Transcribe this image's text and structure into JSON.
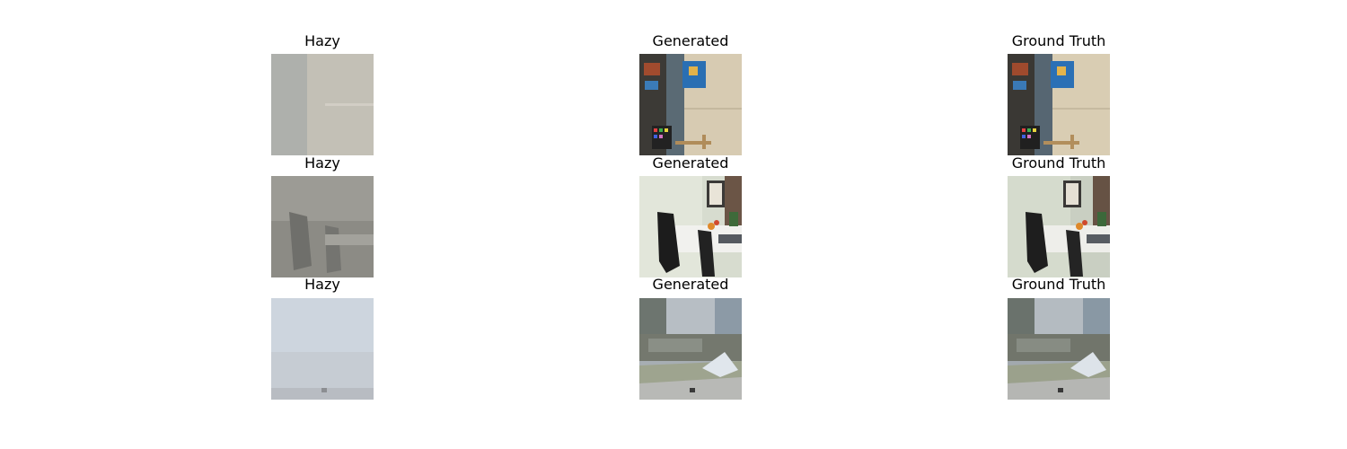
{
  "figure": {
    "columns": [
      "Hazy",
      "Generated",
      "Ground Truth"
    ],
    "rows": [
      {
        "scene": "toy-room-with-board",
        "titles": [
          "Hazy",
          "Generated",
          "Ground Truth"
        ]
      },
      {
        "scene": "office-desk-with-chair",
        "titles": [
          "Hazy",
          "Generated",
          "Ground Truth"
        ]
      },
      {
        "scene": "frosty-park-garden",
        "titles": [
          "Hazy",
          "Generated",
          "Ground Truth"
        ]
      }
    ]
  },
  "colors": {
    "background": "#ffffff",
    "haze_room": "#b9b6ae",
    "haze_office": "#8b8a84",
    "haze_park": "#cfd6de"
  }
}
